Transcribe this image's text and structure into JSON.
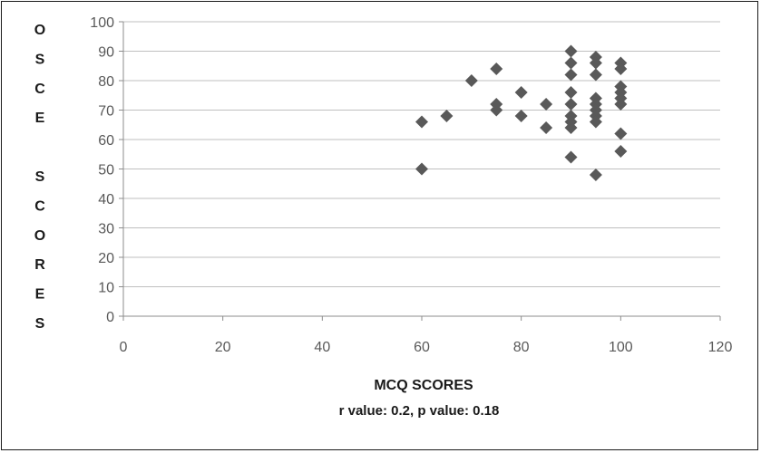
{
  "chart_data": {
    "type": "scatter",
    "title": "",
    "xlabel": "MCQ SCORES",
    "ylabel_letters": [
      "O",
      "S",
      "C",
      "E",
      "",
      "S",
      "C",
      "O",
      "R",
      "E",
      "S"
    ],
    "annotation": "r value: 0.2, p value: 0.18",
    "xlim": [
      0,
      120
    ],
    "ylim": [
      0,
      100
    ],
    "xticks": [
      "0",
      "20",
      "40",
      "60",
      "80",
      "100",
      "120"
    ],
    "yticks": [
      "0",
      "10",
      "20",
      "30",
      "40",
      "50",
      "60",
      "70",
      "80",
      "90",
      "100"
    ],
    "grid": "horizontal",
    "marker_color": "#595959",
    "points": [
      {
        "x": 60,
        "y": 66
      },
      {
        "x": 60,
        "y": 50
      },
      {
        "x": 65,
        "y": 68
      },
      {
        "x": 70,
        "y": 80
      },
      {
        "x": 75,
        "y": 84
      },
      {
        "x": 75,
        "y": 72
      },
      {
        "x": 75,
        "y": 70
      },
      {
        "x": 80,
        "y": 76
      },
      {
        "x": 80,
        "y": 68
      },
      {
        "x": 85,
        "y": 72
      },
      {
        "x": 85,
        "y": 64
      },
      {
        "x": 90,
        "y": 90
      },
      {
        "x": 90,
        "y": 86
      },
      {
        "x": 90,
        "y": 82
      },
      {
        "x": 90,
        "y": 76
      },
      {
        "x": 90,
        "y": 72
      },
      {
        "x": 90,
        "y": 68
      },
      {
        "x": 90,
        "y": 66
      },
      {
        "x": 90,
        "y": 64
      },
      {
        "x": 90,
        "y": 54
      },
      {
        "x": 95,
        "y": 88
      },
      {
        "x": 95,
        "y": 86
      },
      {
        "x": 95,
        "y": 82
      },
      {
        "x": 95,
        "y": 74
      },
      {
        "x": 95,
        "y": 72
      },
      {
        "x": 95,
        "y": 70
      },
      {
        "x": 95,
        "y": 68
      },
      {
        "x": 95,
        "y": 66
      },
      {
        "x": 95,
        "y": 48
      },
      {
        "x": 100,
        "y": 86
      },
      {
        "x": 100,
        "y": 84
      },
      {
        "x": 100,
        "y": 78
      },
      {
        "x": 100,
        "y": 76
      },
      {
        "x": 100,
        "y": 74
      },
      {
        "x": 100,
        "y": 72
      },
      {
        "x": 100,
        "y": 62
      },
      {
        "x": 100,
        "y": 56
      }
    ]
  }
}
